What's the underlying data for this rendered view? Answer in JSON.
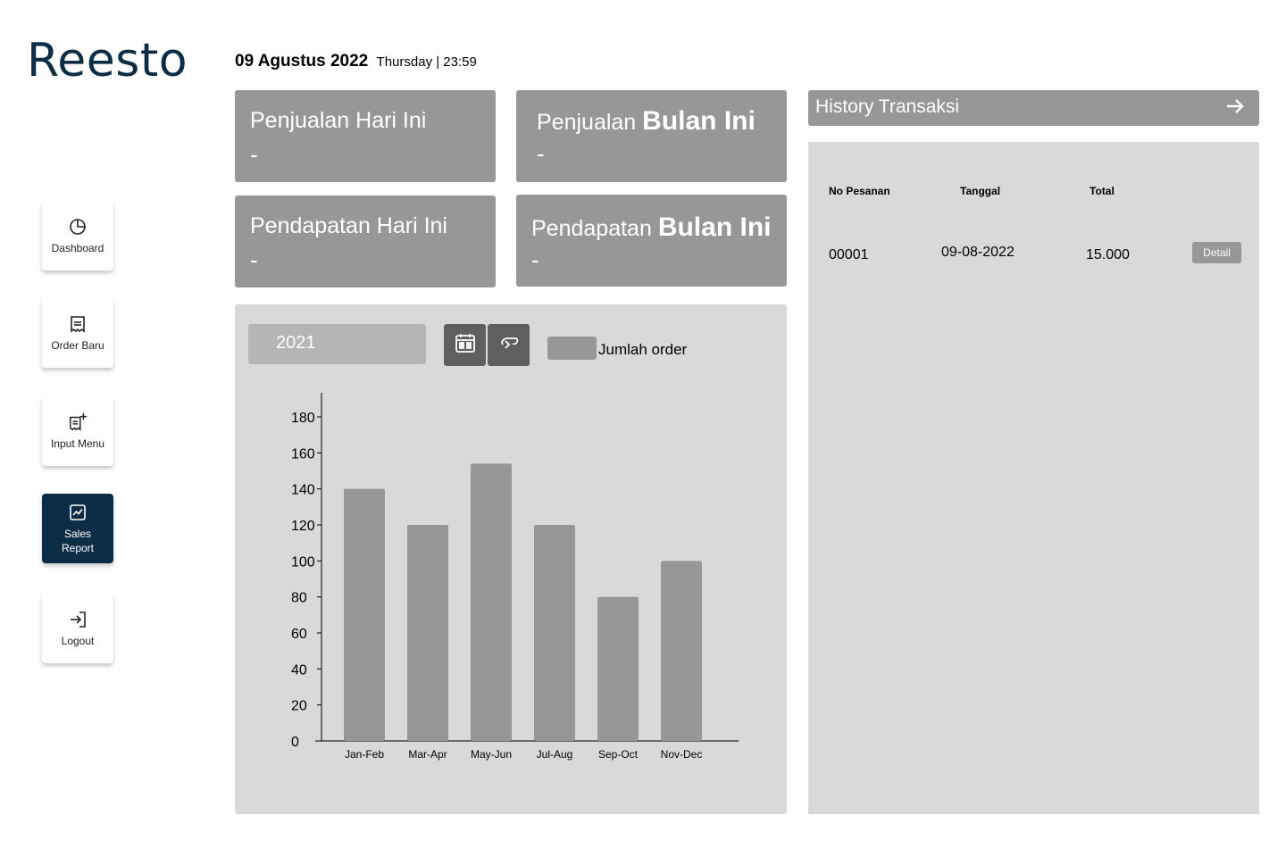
{
  "app": {
    "name": "Reesto"
  },
  "header": {
    "date": "09 Agustus 2022",
    "day_time": "Thursday | 23:59"
  },
  "sidebar": {
    "items": [
      {
        "label": "Dashboard",
        "icon": "pie-chart-icon",
        "active": false
      },
      {
        "label": "Order Baru",
        "icon": "receipt-icon",
        "active": false
      },
      {
        "label": "Input Menu",
        "icon": "receipt-add-icon",
        "active": false
      },
      {
        "label": "Sales Report",
        "icon": "line-chart-icon",
        "active": true
      },
      {
        "label": "Logout",
        "icon": "logout-icon",
        "active": false
      }
    ]
  },
  "stats": {
    "sales_today": {
      "title_pre": "Penjualan Hari Ini",
      "value": "-"
    },
    "sales_month": {
      "title_pre": "Penjualan",
      "title_bold": "Bulan Ini",
      "value": "-"
    },
    "income_today": {
      "title_pre": "Pendapatan Hari Ini",
      "value": "-"
    },
    "income_month": {
      "title_pre": "Pendapatan",
      "title_bold": "Bulan Ini",
      "value": "-"
    }
  },
  "report": {
    "year": "2021",
    "calendar_icon": "calendar-icon",
    "refresh_icon": "refresh-icon",
    "legend_label": "Jumlah order"
  },
  "chart_data": {
    "type": "bar",
    "categories": [
      "Jan-Feb",
      "Mar-Apr",
      "May-Jun",
      "Jul-Aug",
      "Sep-Oct",
      "Nov-Dec"
    ],
    "series": [
      {
        "name": "Jumlah order",
        "values": [
          140,
          120,
          154,
          120,
          80,
          100
        ]
      }
    ],
    "yticks": [
      0,
      20,
      40,
      60,
      80,
      100,
      120,
      140,
      160,
      180
    ],
    "ylim": [
      0,
      190
    ],
    "xlabel": "",
    "ylabel": "",
    "title": "",
    "grid": false,
    "legend": "top",
    "bar_color": "#979797"
  },
  "history": {
    "title": "History Transaksi",
    "columns": [
      "No Pesanan",
      "Tanggal",
      "Total"
    ],
    "rows": [
      {
        "no": "00001",
        "date": "09-08-2022",
        "total": "15.000",
        "action": "Detail"
      }
    ]
  },
  "colors": {
    "brand": "#0b2d45",
    "card": "#979797",
    "panel": "#d9d9d9"
  }
}
